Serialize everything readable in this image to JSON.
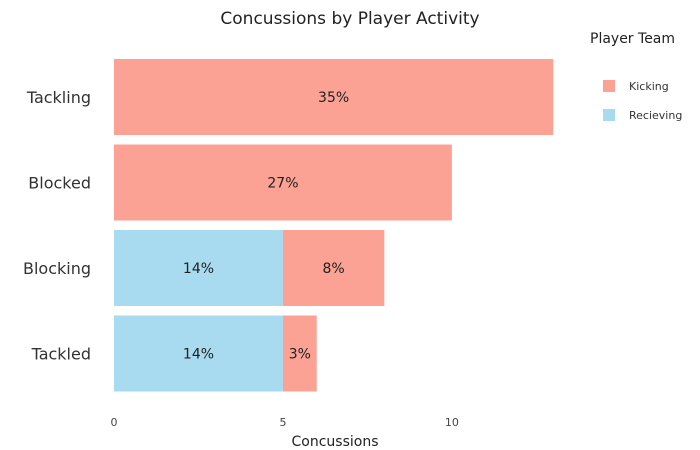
{
  "chart_data": {
    "type": "bar",
    "orientation": "horizontal",
    "stacked": true,
    "title": "Concussions by Player Activity",
    "xlabel": "Concussions",
    "ylabel": "",
    "xlim": [
      0,
      13.2
    ],
    "xticks": [
      0,
      5,
      10
    ],
    "grid": false,
    "categories": [
      "Tackling",
      "Blocked",
      "Blocking",
      "Tackled"
    ],
    "legend": {
      "title": "Player Team",
      "position": "top-right"
    },
    "series": [
      {
        "name": "Recieving",
        "color": "#a8daf0",
        "values": [
          0,
          0,
          5,
          5
        ],
        "labels": [
          "",
          "",
          "14%",
          "14%"
        ]
      },
      {
        "name": "Kicking",
        "color": "#fba294",
        "values": [
          13,
          10,
          3,
          1
        ],
        "labels": [
          "35%",
          "27%",
          "8%",
          "3%"
        ]
      }
    ],
    "legend_order": [
      "Kicking",
      "Recieving"
    ]
  }
}
